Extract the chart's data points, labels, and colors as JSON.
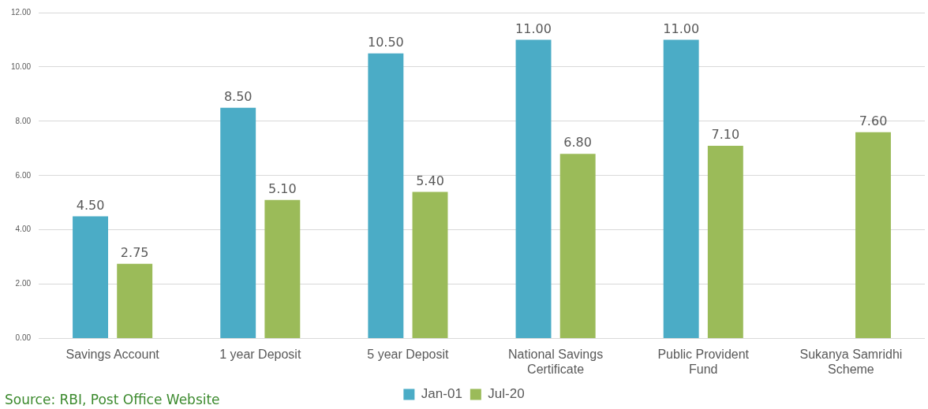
{
  "chart_data": {
    "type": "bar",
    "categories": [
      "Savings Account",
      "1 year Deposit",
      "5 year Deposit",
      "National Savings Certificate",
      "Public Provident Fund",
      "Sukanya Samridhi Scheme"
    ],
    "series": [
      {
        "name": "Jan-01",
        "color": "#4bacc6",
        "values": [
          4.5,
          8.5,
          10.5,
          11,
          11,
          null
        ],
        "value_labels": [
          "4.50",
          "8.50",
          "10.50",
          "11.00",
          "11.00",
          null
        ]
      },
      {
        "name": "Jul-20",
        "color": "#9bbb59",
        "values": [
          2.75,
          5.1,
          5.4,
          6.8,
          7.1,
          7.6
        ],
        "value_labels": [
          "2.75",
          "5.10",
          "5.40",
          "6.80",
          "7.10",
          "7.60"
        ]
      }
    ],
    "ylim": [
      0,
      12
    ],
    "yticks": [
      {
        "value": 0,
        "label": "0.00"
      },
      {
        "value": 2,
        "label": "2.00"
      },
      {
        "value": 4,
        "label": "4.00"
      },
      {
        "value": 6,
        "label": "6.00"
      },
      {
        "value": 8,
        "label": "8.00"
      },
      {
        "value": 10,
        "label": "10.00"
      },
      {
        "value": 12,
        "label": "12.00"
      }
    ],
    "grid": "y",
    "legend": "bottom",
    "annotations": [
      "Source: RBI, Post Office Website"
    ]
  }
}
